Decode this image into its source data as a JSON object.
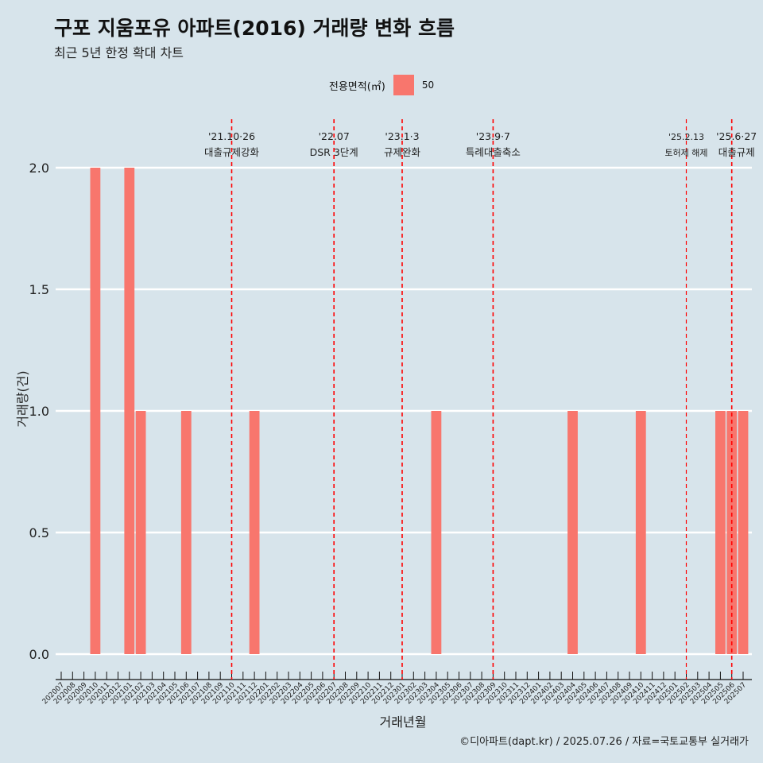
{
  "title": "구포 지움포유 아파트(2016) 거래량 변화 흐름",
  "subtitle": "최근 5년 한정 확대 차트",
  "caption": "©디아파트(dapt.kr) / 2025.07.26 / 자료=국토교통부 실거래가",
  "legend": {
    "title": "전용면적(㎡)",
    "items": [
      {
        "label": "50",
        "color": "#f8766d"
      }
    ]
  },
  "chart_data": {
    "type": "bar",
    "title": "구포 지움포유 아파트(2016) 거래량 변화 흐름",
    "subtitle": "최근 5년 한정 확대 차트",
    "xlabel": "거래년월",
    "ylabel": "거래량(건)",
    "ylim": [
      0,
      2.0
    ],
    "yticks": [
      0.0,
      0.5,
      1.0,
      1.5,
      2.0
    ],
    "ytick_labels": [
      "0.0",
      "0.5",
      "1.0",
      "1.5",
      "2.0"
    ],
    "grid": true,
    "legend_position": "top",
    "categories": [
      "202007",
      "202008",
      "202009",
      "202010",
      "202011",
      "202012",
      "202101",
      "202102",
      "202103",
      "202104",
      "202105",
      "202106",
      "202107",
      "202108",
      "202109",
      "202110",
      "202111",
      "202112",
      "202201",
      "202202",
      "202203",
      "202204",
      "202205",
      "202206",
      "202207",
      "202208",
      "202209",
      "202210",
      "202211",
      "202212",
      "202301",
      "202302",
      "202303",
      "202304",
      "202305",
      "202306",
      "202307",
      "202308",
      "202309",
      "202310",
      "202311",
      "202312",
      "202401",
      "202402",
      "202403",
      "202404",
      "202405",
      "202406",
      "202407",
      "202408",
      "202409",
      "202410",
      "202411",
      "202412",
      "202501",
      "202502",
      "202503",
      "202504",
      "202505",
      "202506",
      "202507"
    ],
    "series": [
      {
        "name": "50",
        "color": "#f8766d",
        "points": [
          {
            "x": "202010",
            "y": 2
          },
          {
            "x": "202101",
            "y": 2
          },
          {
            "x": "202102",
            "y": 1
          },
          {
            "x": "202106",
            "y": 1
          },
          {
            "x": "202112",
            "y": 1
          },
          {
            "x": "202304",
            "y": 1
          },
          {
            "x": "202404",
            "y": 1
          },
          {
            "x": "202410",
            "y": 1
          },
          {
            "x": "202505",
            "y": 1
          },
          {
            "x": "202506",
            "y": 1
          },
          {
            "x": "202507",
            "y": 1
          }
        ]
      }
    ],
    "annotations": [
      {
        "x": "202110",
        "date": "'21.10·26",
        "label": "대출규제강화",
        "color": "#ff0000"
      },
      {
        "x": "202207",
        "date": "'22.07",
        "label": "DSR 3단계",
        "color": "#ff0000"
      },
      {
        "x": "202301",
        "date": "'23.1·3",
        "label": "규제완화",
        "color": "#ff0000"
      },
      {
        "x": "202309",
        "date": "'23.9·7",
        "label": "특례대출축소",
        "color": "#ff0000"
      },
      {
        "x": "202502",
        "date": "'25.2.13",
        "label": "토허제 해제",
        "color": "#ff0000"
      },
      {
        "x": "202506",
        "date": "'25.6·27",
        "label": "대출규제",
        "color": "#ff0000"
      }
    ]
  }
}
